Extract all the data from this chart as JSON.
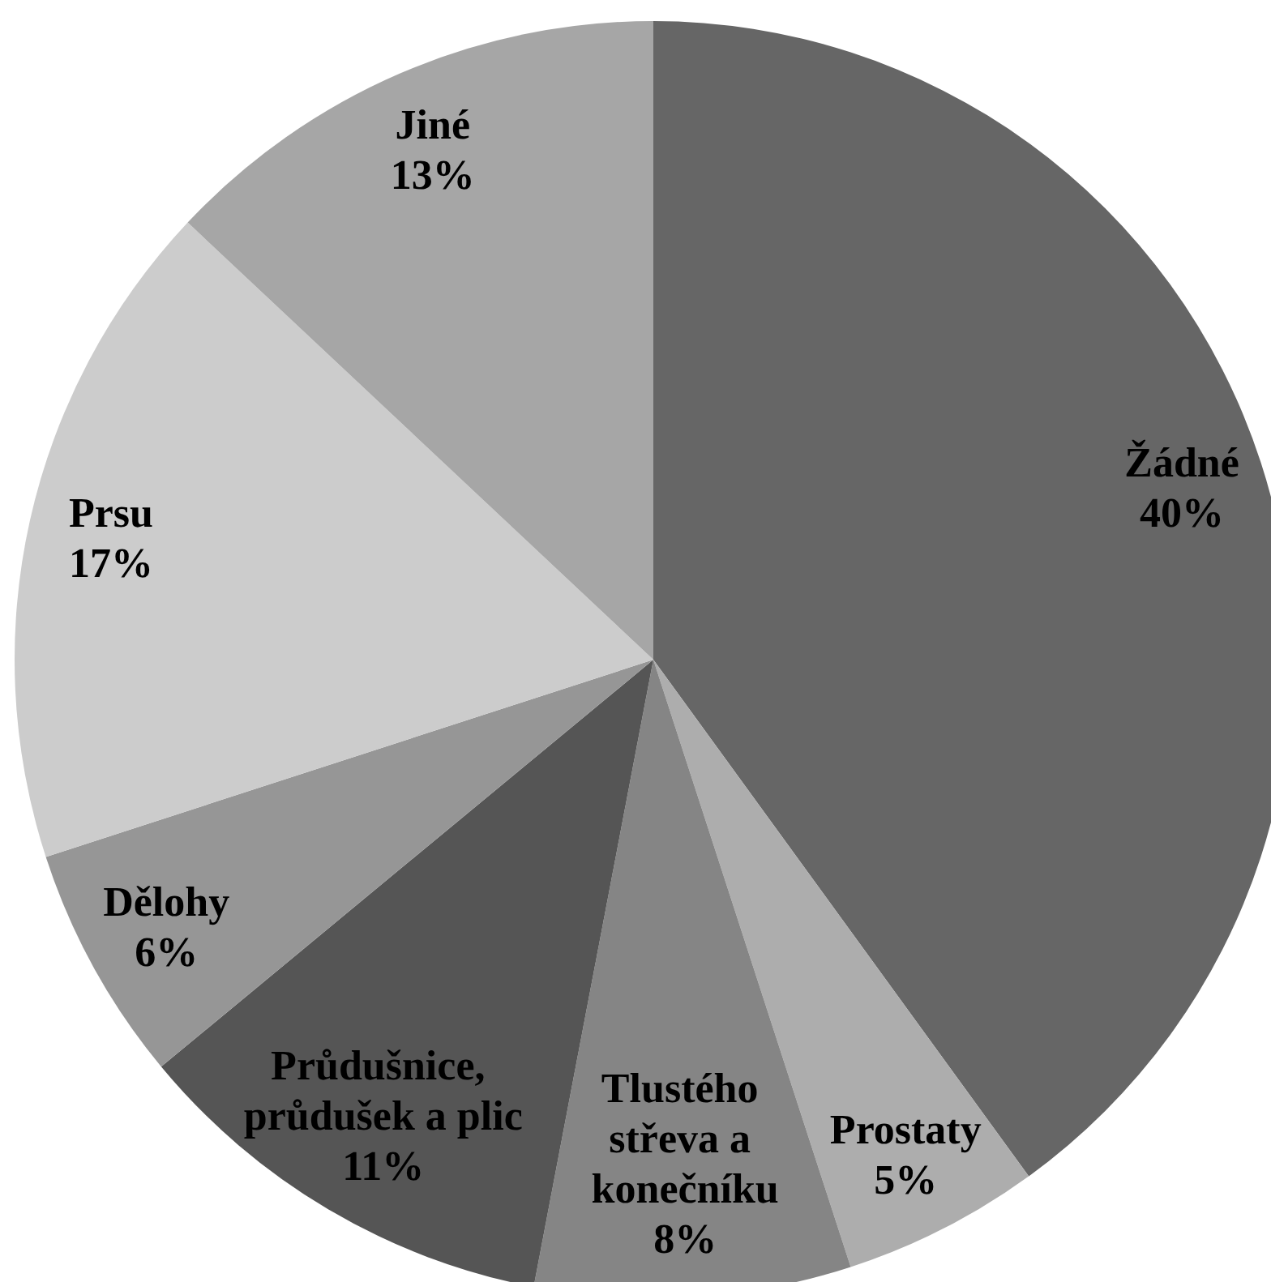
{
  "chart_data": {
    "type": "pie",
    "categories": [
      "Žádné",
      "Prostaty",
      "Tlustého střeva a konečníku",
      "Průdušnice, průdušek a plic",
      "Dělohy",
      "Prsu",
      "Jiné"
    ],
    "values": [
      40,
      5,
      8,
      11,
      6,
      17,
      13
    ],
    "value_labels": [
      "40%",
      "5%",
      "8%",
      "11%",
      "6%",
      "17%",
      "13%"
    ],
    "colors": [
      "#666666",
      "#adadad",
      "#858585",
      "#555555",
      "#969696",
      "#cccccc",
      "#a6a6a6"
    ]
  }
}
